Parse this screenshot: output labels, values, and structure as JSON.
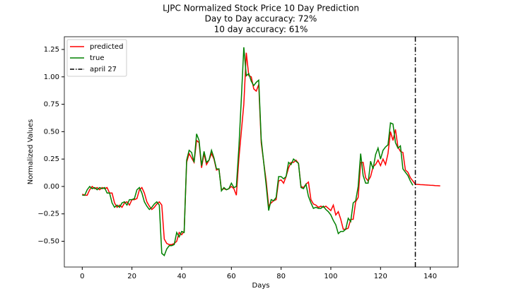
{
  "chart_data": {
    "type": "line",
    "title": "LJPC Normalized Stock Price 10 Day Prediction",
    "subtitle": [
      "Day to Day accuracy: 72%",
      "10 day accuracy: 61%"
    ],
    "x_label": "Days",
    "y_label": "Normalized Values",
    "x": [
      0,
      1,
      2,
      3,
      4,
      5,
      6,
      7,
      8,
      9,
      10,
      11,
      12,
      13,
      14,
      15,
      16,
      17,
      18,
      19,
      20,
      21,
      22,
      23,
      24,
      25,
      26,
      27,
      28,
      29,
      30,
      31,
      32,
      33,
      34,
      35,
      36,
      37,
      38,
      39,
      40,
      41,
      42,
      43,
      44,
      45,
      46,
      47,
      48,
      49,
      50,
      51,
      52,
      53,
      54,
      55,
      56,
      57,
      58,
      59,
      60,
      61,
      62,
      63,
      64,
      65,
      66,
      67,
      68,
      69,
      70,
      71,
      72,
      73,
      74,
      75,
      76,
      77,
      78,
      79,
      80,
      81,
      82,
      83,
      84,
      85,
      86,
      87,
      88,
      89,
      90,
      91,
      92,
      93,
      94,
      95,
      96,
      97,
      98,
      99,
      100,
      101,
      102,
      103,
      104,
      105,
      106,
      107,
      108,
      109,
      110,
      111,
      112,
      113,
      114,
      115,
      116,
      117,
      118,
      119,
      120,
      121,
      122,
      123,
      124,
      125,
      126,
      127,
      128,
      129,
      130,
      131,
      132,
      133,
      134,
      135,
      136,
      137,
      138,
      139,
      140,
      141,
      142,
      143,
      144
    ],
    "series": [
      {
        "name": "predicted",
        "color": "#ff0000",
        "values": [
          -0.07,
          -0.08,
          -0.08,
          -0.03,
          0.0,
          -0.02,
          -0.01,
          -0.03,
          -0.01,
          -0.02,
          -0.01,
          -0.06,
          -0.06,
          -0.15,
          -0.19,
          -0.17,
          -0.19,
          -0.15,
          -0.14,
          -0.17,
          -0.12,
          -0.12,
          -0.11,
          -0.03,
          -0.01,
          -0.06,
          -0.14,
          -0.18,
          -0.21,
          -0.19,
          -0.16,
          -0.14,
          -0.17,
          -0.48,
          -0.52,
          -0.53,
          -0.53,
          -0.52,
          -0.5,
          -0.42,
          -0.44,
          -0.41,
          0.22,
          0.3,
          0.26,
          0.22,
          0.42,
          0.4,
          0.17,
          0.3,
          0.2,
          0.24,
          0.3,
          0.25,
          0.15,
          0.16,
          -0.03,
          -0.02,
          -0.03,
          -0.02,
          0.0,
          -0.02,
          -0.08,
          0.25,
          0.5,
          0.75,
          1.22,
          1.01,
          1.0,
          0.89,
          0.87,
          0.93,
          0.4,
          0.22,
          0.05,
          -0.18,
          -0.15,
          -0.13,
          -0.12,
          0.05,
          0.06,
          0.03,
          0.09,
          0.17,
          0.22,
          0.22,
          0.24,
          0.21,
          0.0,
          -0.01,
          0.02,
          0.04,
          -0.12,
          -0.16,
          -0.17,
          -0.19,
          -0.18,
          -0.19,
          -0.18,
          -0.2,
          -0.22,
          -0.17,
          -0.26,
          -0.23,
          -0.3,
          -0.39,
          -0.39,
          -0.38,
          -0.3,
          -0.3,
          -0.14,
          -0.1,
          0.22,
          0.22,
          0.08,
          0.05,
          0.09,
          0.18,
          0.2,
          0.24,
          0.19,
          0.25,
          0.2,
          0.3,
          0.5,
          0.42,
          0.52,
          0.36,
          0.32,
          0.31,
          0.15,
          0.13,
          0.08,
          0.05,
          0.02,
          0.019,
          0.017,
          0.016,
          0.014,
          0.013,
          0.011,
          0.01,
          0.008,
          0.007,
          0.005
        ]
      },
      {
        "name": "true",
        "color": "#008000",
        "values": [
          -0.08,
          -0.08,
          -0.03,
          0.0,
          -0.02,
          -0.01,
          -0.03,
          -0.01,
          -0.02,
          -0.01,
          -0.06,
          -0.06,
          -0.15,
          -0.19,
          -0.17,
          -0.19,
          -0.15,
          -0.14,
          -0.17,
          -0.12,
          -0.12,
          -0.11,
          -0.03,
          -0.01,
          -0.06,
          -0.14,
          -0.18,
          -0.21,
          -0.19,
          -0.16,
          -0.14,
          -0.17,
          -0.61,
          -0.63,
          -0.57,
          -0.54,
          -0.54,
          -0.53,
          -0.42,
          -0.46,
          -0.41,
          -0.42,
          0.24,
          0.33,
          0.31,
          0.22,
          0.48,
          0.42,
          0.19,
          0.32,
          0.22,
          0.24,
          0.33,
          0.26,
          0.16,
          0.16,
          -0.04,
          -0.01,
          -0.03,
          -0.02,
          0.03,
          -0.01,
          0.0,
          0.35,
          0.8,
          1.27,
          1.01,
          1.03,
          0.96,
          0.92,
          0.95,
          0.97,
          0.43,
          0.22,
          0.01,
          -0.22,
          -0.12,
          -0.13,
          -0.1,
          0.09,
          0.09,
          0.07,
          0.09,
          0.22,
          0.2,
          0.25,
          0.23,
          0.21,
          -0.01,
          -0.02,
          0.02,
          -0.09,
          -0.15,
          -0.2,
          -0.19,
          -0.2,
          -0.2,
          -0.18,
          -0.21,
          -0.23,
          -0.26,
          -0.31,
          -0.35,
          -0.43,
          -0.41,
          -0.41,
          -0.39,
          -0.29,
          -0.32,
          -0.15,
          -0.13,
          0.0,
          0.3,
          0.1,
          0.03,
          0.03,
          0.23,
          0.16,
          0.29,
          0.35,
          0.25,
          0.33,
          0.36,
          0.38,
          0.58,
          0.57,
          0.4,
          0.35,
          0.37,
          0.16,
          0.13,
          0.1,
          0.05,
          0.01,
          null,
          null,
          null,
          null,
          null,
          null,
          null,
          null,
          null,
          null,
          null
        ]
      }
    ],
    "vline": {
      "x": 134,
      "name": "april 27",
      "color": "#000000"
    },
    "xlim": [
      -7.2,
      151.2
    ],
    "xticks": [
      0,
      20,
      40,
      60,
      80,
      100,
      120,
      140
    ],
    "ylim": [
      -0.735,
      1.366
    ],
    "yticks": [
      {
        "value": -0.5,
        "label": "−0.50"
      },
      {
        "value": -0.25,
        "label": "−0.25"
      },
      {
        "value": 0,
        "label": "0.00"
      },
      0.25,
      {
        "value": 0.5,
        "label": "0.50"
      },
      0.75,
      {
        "value": 1,
        "label": "1.00"
      },
      1.25
    ],
    "legend": "upper left"
  }
}
